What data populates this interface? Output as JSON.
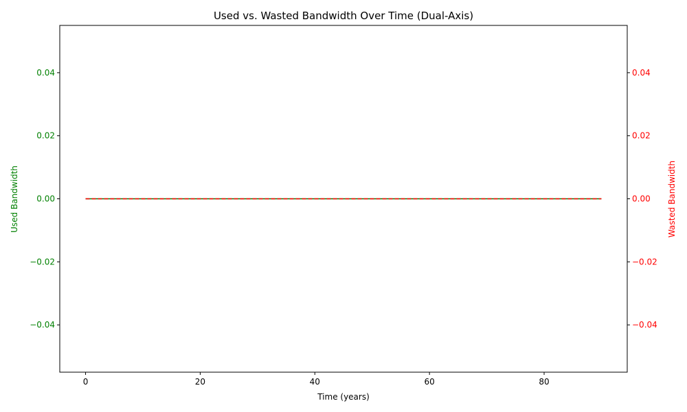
{
  "chart_data": {
    "type": "line",
    "title": "Used vs. Wasted Bandwidth Over Time (Dual-Axis)",
    "xlabel": "Time (years)",
    "ylabel_left": "Used Bandwidth",
    "ylabel_right": "Wasted Bandwidth",
    "xlim": [
      -4.5,
      94.5
    ],
    "ylim_left": [
      -0.055,
      0.055
    ],
    "ylim_right": [
      -0.055,
      0.055
    ],
    "x_ticks": [
      0,
      20,
      40,
      60,
      80
    ],
    "x_tick_labels": [
      "0",
      "20",
      "40",
      "60",
      "80"
    ],
    "y_ticks": [
      -0.04,
      -0.02,
      0.0,
      0.02,
      0.04
    ],
    "y_tick_labels": [
      "−0.04",
      "−0.02",
      "0.00",
      "0.02",
      "0.04"
    ],
    "grid": false,
    "colors": {
      "used": "#008000",
      "wasted": "#ff0000",
      "axis": "#000000"
    },
    "series": [
      {
        "key": "used",
        "axis": "left",
        "x": [
          0,
          10,
          20,
          30,
          40,
          50,
          60,
          70,
          80,
          90
        ],
        "y": [
          0,
          0,
          0,
          0,
          0,
          0,
          0,
          0,
          0,
          0
        ]
      },
      {
        "key": "wasted",
        "axis": "right",
        "style": "dashed",
        "x": [
          0,
          10,
          20,
          30,
          40,
          50,
          60,
          70,
          80,
          90
        ],
        "y": [
          0,
          0,
          0,
          0,
          0,
          0,
          0,
          0,
          0,
          0
        ]
      }
    ]
  }
}
